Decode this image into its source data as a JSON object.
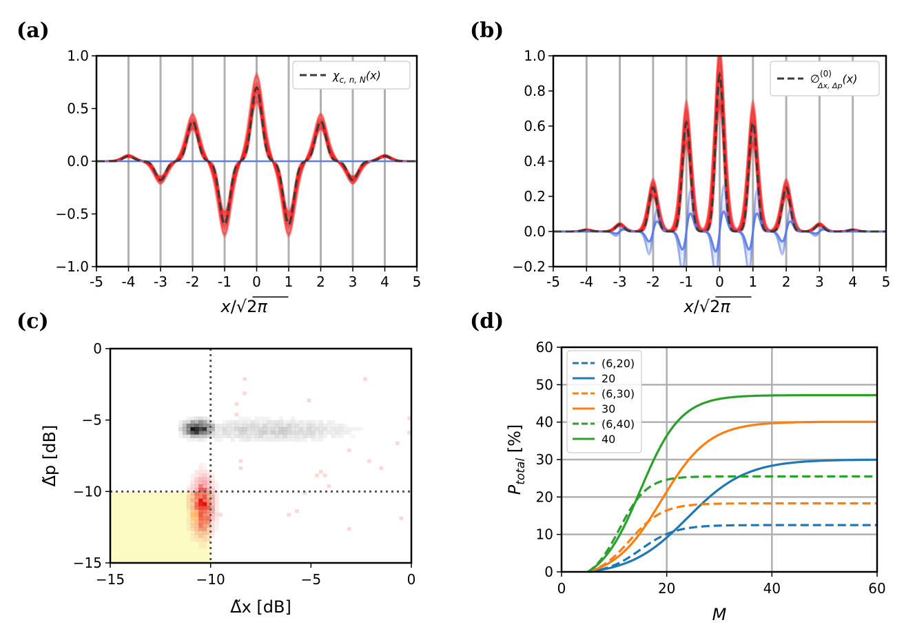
{
  "chart_data": [
    {
      "id": "a",
      "panel_label": "(a)",
      "type": "line",
      "xlabel": "x/√2π",
      "xlim": [
        -5,
        5
      ],
      "ylim": [
        -1.0,
        1.0
      ],
      "xticks": [
        "-5",
        "-4",
        "-3",
        "-2",
        "-1",
        "0",
        "1",
        "2",
        "3",
        "4",
        "5"
      ],
      "yticks": [
        {
          "v": 1.0,
          "t": "1.0"
        },
        {
          "v": 0.5,
          "t": "0.5"
        },
        {
          "v": 0.0,
          "t": "0.0"
        },
        {
          "v": -0.5,
          "t": "−0.5"
        },
        {
          "v": -1.0,
          "t": "−1.0"
        }
      ],
      "vertical_gridlines_at_integers": true,
      "legend": {
        "label": "χ",
        "sub": "c, n, N",
        "tail": "(x)",
        "placement": "top-right"
      },
      "dashed_curve_peaks": [
        {
          "x": -4,
          "amp": 0.05
        },
        {
          "x": -3,
          "amp": -0.18
        },
        {
          "x": -2,
          "amp": 0.38
        },
        {
          "x": -1,
          "amp": -0.6
        },
        {
          "x": 0,
          "amp": 0.7
        },
        {
          "x": 1,
          "amp": -0.6
        },
        {
          "x": 2,
          "amp": 0.38
        },
        {
          "x": 3,
          "amp": -0.18
        },
        {
          "x": 4,
          "amp": 0.05
        }
      ],
      "peak_width": 0.16,
      "blue_curve_value": 0.0,
      "colors": {
        "red": "#ff2020",
        "blue": "#5b7fe8",
        "dashed": "#3a3a3a"
      }
    },
    {
      "id": "b",
      "panel_label": "(b)",
      "type": "line",
      "xlabel": "x/√2π",
      "xlim": [
        -5,
        5
      ],
      "ylim": [
        -0.2,
        1.0
      ],
      "xticks": [
        "-5",
        "-4",
        "-3",
        "-2",
        "-1",
        "0",
        "1",
        "2",
        "3",
        "4",
        "5"
      ],
      "yticks": [
        {
          "v": 1.0,
          "t": "1.0"
        },
        {
          "v": 0.8,
          "t": "0.8"
        },
        {
          "v": 0.6,
          "t": "0.6"
        },
        {
          "v": 0.4,
          "t": "0.4"
        },
        {
          "v": 0.2,
          "t": "0.2"
        },
        {
          "v": 0.0,
          "t": "0.0"
        },
        {
          "v": -0.2,
          "t": "−0.2"
        }
      ],
      "vertical_gridlines_at_integers": true,
      "legend": {
        "label": "∅",
        "sup": "(0)",
        "sub": "Δx, Δp",
        "tail": "(x)",
        "placement": "top-right"
      },
      "dashed_curve_peaks": [
        {
          "x": -4,
          "amp": 0.01
        },
        {
          "x": -3,
          "amp": 0.04
        },
        {
          "x": -2,
          "amp": 0.25
        },
        {
          "x": -1,
          "amp": 0.62
        },
        {
          "x": 0,
          "amp": 0.89
        },
        {
          "x": 1,
          "amp": 0.62
        },
        {
          "x": 2,
          "amp": 0.25
        },
        {
          "x": 3,
          "amp": 0.04
        },
        {
          "x": 4,
          "amp": 0.01
        }
      ],
      "peak_width": 0.12,
      "blue_oscillation_amp": [
        0.0,
        0.02,
        0.1,
        0.18,
        0.2,
        0.18,
        0.1,
        0.02,
        0.0
      ],
      "colors": {
        "red": "#ff2020",
        "blue": "#5b7fe8",
        "dashed": "#3a3a3a"
      }
    },
    {
      "id": "c",
      "panel_label": "(c)",
      "type": "heatmap",
      "xlabel": "Δ̃x [dB]",
      "ylabel": "Δ̃p [dB]",
      "xlim": [
        -15,
        0
      ],
      "ylim": [
        -15,
        0
      ],
      "xticks": [
        {
          "v": -15,
          "t": "−15"
        },
        {
          "v": -10,
          "t": "−10"
        },
        {
          "v": -5,
          "t": "−5"
        },
        {
          "v": 0,
          "t": "0"
        }
      ],
      "yticks": [
        {
          "v": 0,
          "t": "0"
        },
        {
          "v": -5,
          "t": "−5"
        },
        {
          "v": -10,
          "t": "−10"
        },
        {
          "v": -15,
          "t": "−15"
        }
      ],
      "threshold_x": -10,
      "threshold_y": -10,
      "highlight_region": {
        "x": [
          -15,
          -10
        ],
        "y": [
          -15,
          -10
        ],
        "color": "#fdfbc4"
      },
      "clusters": [
        {
          "cx": -10.6,
          "cy": -5.6,
          "sx": 0.45,
          "sy": 0.35,
          "color": "black",
          "strength": 1.0
        },
        {
          "cx": -7.0,
          "cy": -5.7,
          "sx": 2.6,
          "sy": 0.5,
          "color": "black",
          "strength": 0.18
        },
        {
          "cx": -10.4,
          "cy": -11.0,
          "sx": 0.35,
          "sy": 1.2,
          "color": "red",
          "strength": 0.9
        },
        {
          "cx": -10.6,
          "cy": -11.6,
          "sx": 0.25,
          "sy": 0.5,
          "color": "orange",
          "strength": 0.8
        }
      ]
    },
    {
      "id": "d",
      "panel_label": "(d)",
      "type": "line",
      "xlabel": "M",
      "ylabel": "P_total [%]",
      "ylabel_main": "P",
      "ylabel_sub": "total",
      "ylabel_tail": " [%]",
      "xlim": [
        0,
        60
      ],
      "ylim": [
        0,
        60
      ],
      "xticks": [
        {
          "v": 0,
          "t": "0"
        },
        {
          "v": 20,
          "t": "20"
        },
        {
          "v": 40,
          "t": "40"
        },
        {
          "v": 60,
          "t": "60"
        }
      ],
      "yticks": [
        {
          "v": 0,
          "t": "0"
        },
        {
          "v": 10,
          "t": "10"
        },
        {
          "v": 20,
          "t": "20"
        },
        {
          "v": 30,
          "t": "30"
        },
        {
          "v": 40,
          "t": "40"
        },
        {
          "v": 50,
          "t": "50"
        },
        {
          "v": 60,
          "t": "60"
        }
      ],
      "series": [
        {
          "name": "(6,20)",
          "dashed": true,
          "color": "#1f77b4",
          "plateau": 12.5,
          "mid": 15,
          "k": 0.3
        },
        {
          "name": "20",
          "dashed": false,
          "color": "#1f77b4",
          "plateau": 30.0,
          "mid": 24,
          "k": 0.18
        },
        {
          "name": "(6,30)",
          "dashed": true,
          "color": "#ff7f0e",
          "plateau": 18.3,
          "mid": 13,
          "k": 0.32
        },
        {
          "name": "30",
          "dashed": false,
          "color": "#ff7f0e",
          "plateau": 40.1,
          "mid": 19,
          "k": 0.22
        },
        {
          "name": "(6,40)",
          "dashed": true,
          "color": "#2ca02c",
          "plateau": 25.5,
          "mid": 11,
          "k": 0.38
        },
        {
          "name": "40",
          "dashed": false,
          "color": "#2ca02c",
          "plateau": 47.2,
          "mid": 15,
          "k": 0.26
        }
      ],
      "legend_placement": "top-left"
    }
  ]
}
